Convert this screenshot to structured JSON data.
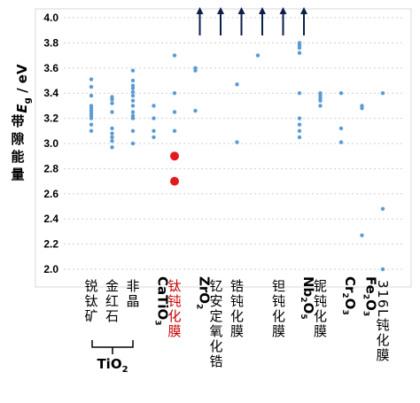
{
  "chart_data": {
    "type": "scatter",
    "ylabel_cn": "带隙能量",
    "ylabel_symbol": "E",
    "ylabel_sub": "g",
    "ylabel_unit": " / eV",
    "ylim": [
      2.0,
      4.0
    ],
    "yticks": [
      "2.0",
      "2.2",
      "2.4",
      "2.6",
      "2.8",
      "3.0",
      "3.2",
      "3.4",
      "3.6",
      "3.8",
      "4.0"
    ],
    "grid": "horizontal-dotted",
    "point_color": "#5b9bd5",
    "highlight_color": "#e31a1c",
    "arrow_color": "#0c1f4a",
    "categories": [
      {
        "label": "锐钛矿",
        "values": [
          3.51,
          3.45,
          3.38,
          3.3,
          3.28,
          3.26,
          3.24,
          3.22,
          3.2,
          3.15,
          3.1
        ]
      },
      {
        "label": "金红石",
        "values": [
          3.37,
          3.35,
          3.32,
          3.25,
          3.12,
          3.08,
          3.05,
          3.02,
          2.97
        ]
      },
      {
        "label": "非晶",
        "values": [
          3.58,
          3.5,
          3.46,
          3.44,
          3.41,
          3.38,
          3.34,
          3.3,
          3.25,
          3.22,
          3.2,
          3.1,
          3.0
        ]
      },
      {
        "label": "CaTiO3",
        "label_main": "CaTiO",
        "label_sub": "3",
        "values": [
          3.3,
          3.2,
          3.1,
          3.05
        ]
      },
      {
        "label": "钛钝化膜",
        "highlight": true,
        "values": [
          3.7,
          3.4,
          3.25,
          3.1,
          2.9,
          2.7
        ]
      },
      {
        "label": "ZrO2",
        "label_main": "ZrO",
        "label_sub": "2",
        "values": [
          3.6,
          3.58,
          3.26
        ],
        "arrow": true
      },
      {
        "label": "钇安定氧化锆",
        "values": [],
        "arrow": true
      },
      {
        "label": "锆钝化膜",
        "values": [
          3.47,
          3.01
        ],
        "arrow": true
      },
      {
        "label": "",
        "values": [
          3.7
        ],
        "arrow": true
      },
      {
        "label": "钽钝化膜",
        "values": [],
        "arrow": true
      },
      {
        "label": "Nb2O5",
        "label_main": "Nb",
        "label_sub": "2",
        "label_main2": "O",
        "label_sub2": "5",
        "values": [
          3.8,
          3.78,
          3.76,
          3.72,
          3.4,
          3.2,
          3.15,
          3.1,
          3.05
        ],
        "arrow": true
      },
      {
        "label": "铌钝化膜",
        "values": [
          3.4,
          3.38,
          3.36,
          3.34,
          3.3
        ]
      },
      {
        "label": "Cr2O3",
        "label_main": "Cr",
        "label_sub": "2",
        "label_main2": "O",
        "label_sub2": "3",
        "values": [
          3.4,
          3.12,
          3.01
        ]
      },
      {
        "label": "Fe2O3",
        "label_main": "Fe",
        "label_sub": "2",
        "label_main2": "O",
        "label_sub2": "3",
        "values": [
          3.3,
          3.28,
          2.27
        ]
      },
      {
        "label": "316L钝化膜",
        "values": [
          3.4,
          2.48,
          2.0
        ]
      }
    ],
    "group_label": "TiO2",
    "group_label_main": "TiO",
    "group_label_sub": "2"
  }
}
